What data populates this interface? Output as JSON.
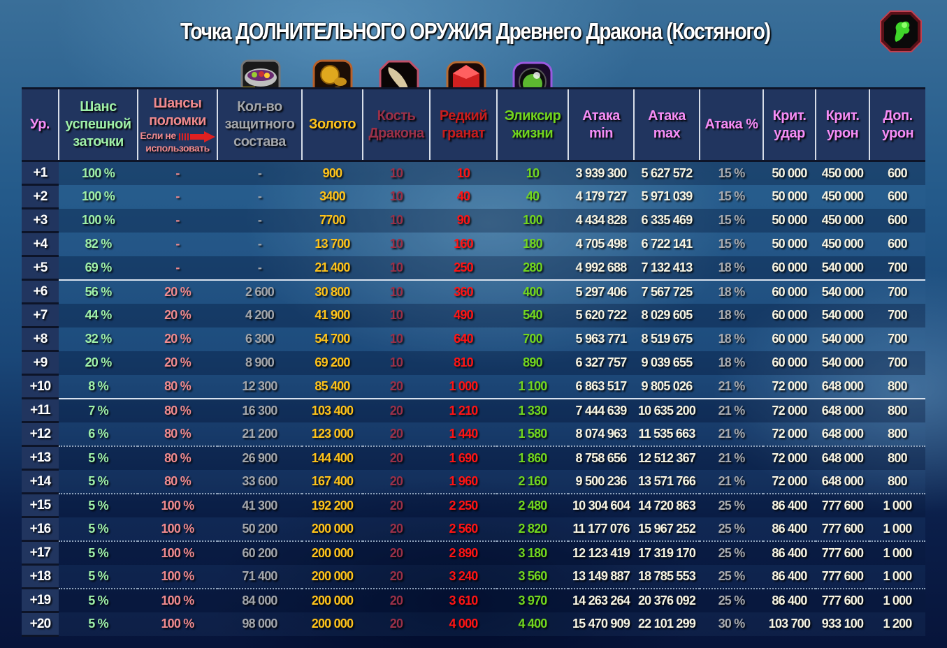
{
  "title": "Точка ДОЛНИТЕЛЬНОГО ОРУЖИЯ Древнего Дракона (Костяного)",
  "icons": {
    "title_item": "green-dragon-weapon-icon",
    "protect": "protective-compound-bowl-icon",
    "gold": "gold-coins-icon",
    "bone": "dragon-bone-icon",
    "garnet": "rare-garnet-icon",
    "elixir": "elixir-of-life-icon"
  },
  "colors": {
    "header_bg": "#21355f",
    "level": "#f58cf5",
    "success": "#9ff0a8",
    "break": "#f08a8e",
    "protect": "#a3a6ab",
    "gold": "#ffc31a",
    "bone": "#9a3048",
    "garnet": "#ff1414",
    "elixir": "#72d61e",
    "stats": "#f7f4e2"
  },
  "headers": {
    "level": "Ур.",
    "success_l1": "Шанс",
    "success_l2": "успешной",
    "success_l3": "заточки",
    "break_l1": "Шансы",
    "break_l2": "поломки",
    "break_note_l1": "Если не",
    "break_note_l2": "использовать",
    "protect_l1": "Кол-во",
    "protect_l2": "защитного",
    "protect_l3": "состава",
    "gold": "Золото",
    "bone_l1": "Кость",
    "bone_l2": "Дракона",
    "garnet_l1": "Редкий",
    "garnet_l2": "гранат",
    "elixir_l1": "Эликсир",
    "elixir_l2": "жизни",
    "atk_min_l1": "Атака",
    "atk_min_l2": "min",
    "atk_max_l1": "Атака",
    "atk_max_l2": "max",
    "atk_pct": "Атака %",
    "crit_hit_l1": "Крит.",
    "crit_hit_l2": "удар",
    "crit_dmg_l1": "Крит.",
    "crit_dmg_l2": "урон",
    "extra_dmg_l1": "Доп.",
    "extra_dmg_l2": "урон"
  },
  "rows": [
    {
      "level": "+1",
      "success": "100 %",
      "break": "-",
      "protect": "-",
      "gold": "900",
      "bone": "10",
      "garnet": "10",
      "elixir": "10",
      "atk_min": "3 939 300",
      "atk_max": "5 627 572",
      "atk_pct": "15 %",
      "crit_hit": "50 000",
      "crit_dmg": "450 000",
      "extra_dmg": "600"
    },
    {
      "level": "+2",
      "success": "100 %",
      "break": "-",
      "protect": "-",
      "gold": "3400",
      "bone": "10",
      "garnet": "40",
      "elixir": "40",
      "atk_min": "4 179 727",
      "atk_max": "5 971 039",
      "atk_pct": "15 %",
      "crit_hit": "50 000",
      "crit_dmg": "450 000",
      "extra_dmg": "600"
    },
    {
      "level": "+3",
      "success": "100 %",
      "break": "-",
      "protect": "-",
      "gold": "7700",
      "bone": "10",
      "garnet": "90",
      "elixir": "100",
      "atk_min": "4 434 828",
      "atk_max": "6 335 469",
      "atk_pct": "15 %",
      "crit_hit": "50 000",
      "crit_dmg": "450 000",
      "extra_dmg": "600"
    },
    {
      "level": "+4",
      "success": "82 %",
      "break": "-",
      "protect": "-",
      "gold": "13 700",
      "bone": "10",
      "garnet": "160",
      "elixir": "180",
      "atk_min": "4 705 498",
      "atk_max": "6 722 141",
      "atk_pct": "15 %",
      "crit_hit": "50 000",
      "crit_dmg": "450 000",
      "extra_dmg": "600"
    },
    {
      "level": "+5",
      "success": "69 %",
      "break": "-",
      "protect": "-",
      "gold": "21 400",
      "bone": "10",
      "garnet": "250",
      "elixir": "280",
      "atk_min": "4 992 688",
      "atk_max": "7 132 413",
      "atk_pct": "18 %",
      "crit_hit": "60 000",
      "crit_dmg": "540 000",
      "extra_dmg": "700"
    },
    {
      "level": "+6",
      "success": "56 %",
      "break": "20 %",
      "protect": "2 600",
      "gold": "30 800",
      "bone": "10",
      "garnet": "360",
      "elixir": "400",
      "atk_min": "5 297 406",
      "atk_max": "7 567 725",
      "atk_pct": "18 %",
      "crit_hit": "60 000",
      "crit_dmg": "540 000",
      "extra_dmg": "700"
    },
    {
      "level": "+7",
      "success": "44 %",
      "break": "20 %",
      "protect": "4 200",
      "gold": "41 900",
      "bone": "10",
      "garnet": "490",
      "elixir": "540",
      "atk_min": "5 620 722",
      "atk_max": "8 029 605",
      "atk_pct": "18 %",
      "crit_hit": "60 000",
      "crit_dmg": "540 000",
      "extra_dmg": "700"
    },
    {
      "level": "+8",
      "success": "32 %",
      "break": "20 %",
      "protect": "6 300",
      "gold": "54 700",
      "bone": "10",
      "garnet": "640",
      "elixir": "700",
      "atk_min": "5 963 771",
      "atk_max": "8 519 675",
      "atk_pct": "18 %",
      "crit_hit": "60 000",
      "crit_dmg": "540 000",
      "extra_dmg": "700"
    },
    {
      "level": "+9",
      "success": "20 %",
      "break": "20 %",
      "protect": "8 900",
      "gold": "69 200",
      "bone": "10",
      "garnet": "810",
      "elixir": "890",
      "atk_min": "6 327 757",
      "atk_max": "9 039 655",
      "atk_pct": "18 %",
      "crit_hit": "60 000",
      "crit_dmg": "540 000",
      "extra_dmg": "700"
    },
    {
      "level": "+10",
      "success": "8 %",
      "break": "80 %",
      "protect": "12 300",
      "gold": "85 400",
      "bone": "20",
      "garnet": "1 000",
      "elixir": "1 100",
      "atk_min": "6 863 517",
      "atk_max": "9 805 026",
      "atk_pct": "21 %",
      "crit_hit": "72 000",
      "crit_dmg": "648 000",
      "extra_dmg": "800"
    },
    {
      "level": "+11",
      "success": "7 %",
      "break": "80 %",
      "protect": "16 300",
      "gold": "103 400",
      "bone": "20",
      "garnet": "1 210",
      "elixir": "1 330",
      "atk_min": "7 444 639",
      "atk_max": "10 635 200",
      "atk_pct": "21 %",
      "crit_hit": "72 000",
      "crit_dmg": "648 000",
      "extra_dmg": "800"
    },
    {
      "level": "+12",
      "success": "6 %",
      "break": "80 %",
      "protect": "21 200",
      "gold": "123 000",
      "bone": "20",
      "garnet": "1 440",
      "elixir": "1 580",
      "atk_min": "8 074 963",
      "atk_max": "11 535 663",
      "atk_pct": "21 %",
      "crit_hit": "72 000",
      "crit_dmg": "648 000",
      "extra_dmg": "800"
    },
    {
      "level": "+13",
      "success": "5 %",
      "break": "80 %",
      "protect": "26 900",
      "gold": "144 400",
      "bone": "20",
      "garnet": "1 690",
      "elixir": "1 860",
      "atk_min": "8 758 656",
      "atk_max": "12 512 367",
      "atk_pct": "21 %",
      "crit_hit": "72 000",
      "crit_dmg": "648 000",
      "extra_dmg": "800"
    },
    {
      "level": "+14",
      "success": "5 %",
      "break": "80 %",
      "protect": "33 600",
      "gold": "167 400",
      "bone": "20",
      "garnet": "1 960",
      "elixir": "2 160",
      "atk_min": "9 500 236",
      "atk_max": "13 571 766",
      "atk_pct": "21 %",
      "crit_hit": "72 000",
      "crit_dmg": "648 000",
      "extra_dmg": "800"
    },
    {
      "level": "+15",
      "success": "5 %",
      "break": "100 %",
      "protect": "41 300",
      "gold": "192 200",
      "bone": "20",
      "garnet": "2 250",
      "elixir": "2 480",
      "atk_min": "10 304 604",
      "atk_max": "14 720 863",
      "atk_pct": "25 %",
      "crit_hit": "86 400",
      "crit_dmg": "777 600",
      "extra_dmg": "1 000"
    },
    {
      "level": "+16",
      "success": "5 %",
      "break": "100 %",
      "protect": "50 200",
      "gold": "200 000",
      "bone": "20",
      "garnet": "2 560",
      "elixir": "2 820",
      "atk_min": "11 177 076",
      "atk_max": "15 967 252",
      "atk_pct": "25 %",
      "crit_hit": "86 400",
      "crit_dmg": "777 600",
      "extra_dmg": "1 000"
    },
    {
      "level": "+17",
      "success": "5 %",
      "break": "100 %",
      "protect": "60 200",
      "gold": "200 000",
      "bone": "20",
      "garnet": "2 890",
      "elixir": "3 180",
      "atk_min": "12 123 419",
      "atk_max": "17 319 170",
      "atk_pct": "25 %",
      "crit_hit": "86 400",
      "crit_dmg": "777 600",
      "extra_dmg": "1 000"
    },
    {
      "level": "+18",
      "success": "5 %",
      "break": "100 %",
      "protect": "71 400",
      "gold": "200 000",
      "bone": "20",
      "garnet": "3 240",
      "elixir": "3 560",
      "atk_min": "13 149 887",
      "atk_max": "18 785 553",
      "atk_pct": "25 %",
      "crit_hit": "86 400",
      "crit_dmg": "777 600",
      "extra_dmg": "1 000"
    },
    {
      "level": "+19",
      "success": "5 %",
      "break": "100 %",
      "protect": "84 000",
      "gold": "200 000",
      "bone": "20",
      "garnet": "3 610",
      "elixir": "3 970",
      "atk_min": "14 263 264",
      "atk_max": "20 376 092",
      "atk_pct": "25 %",
      "crit_hit": "86 400",
      "crit_dmg": "777 600",
      "extra_dmg": "1 000"
    },
    {
      "level": "+20",
      "success": "5 %",
      "break": "100 %",
      "protect": "98 000",
      "gold": "200 000",
      "bone": "20",
      "garnet": "4 000",
      "elixir": "4 400",
      "atk_min": "15 470 909",
      "atk_max": "22 101 299",
      "atk_pct": "30 %",
      "crit_hit": "103 700",
      "crit_dmg": "933 100",
      "extra_dmg": "1 200"
    }
  ],
  "separators": {
    "solid_after": [
      "+5",
      "+10"
    ],
    "dotted_after": [
      "+12",
      "+14",
      "+16",
      "+18"
    ]
  }
}
